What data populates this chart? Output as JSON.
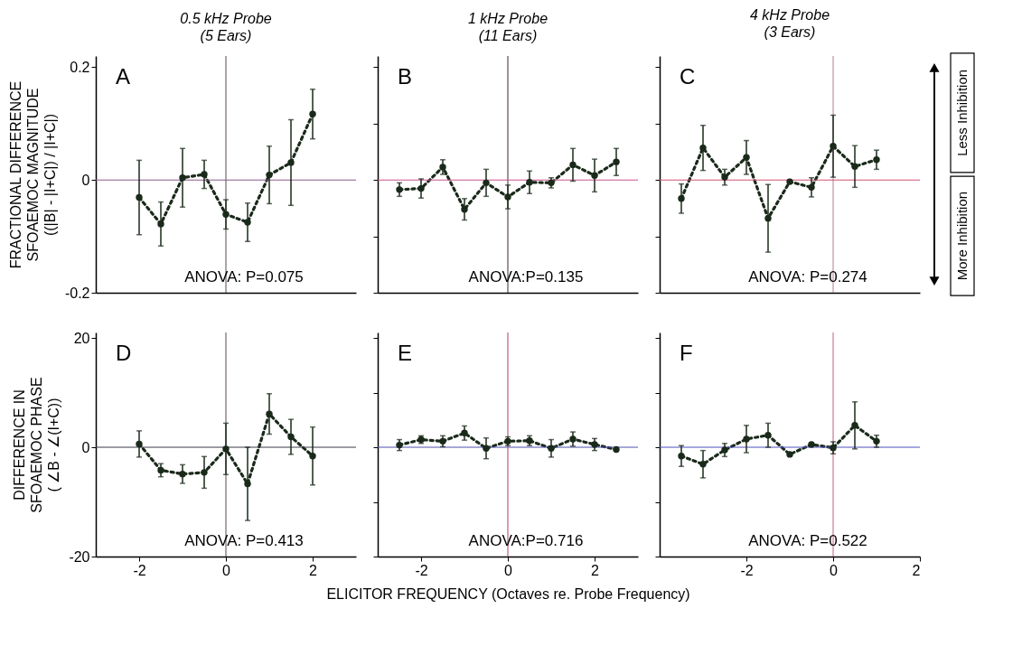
{
  "chart_data": [
    {
      "type": "line",
      "title": "0.5 kHz Probe",
      "subtitle": "(5 Ears)",
      "ylabel": "FRACTIONAL DIFFERENCE\nSFOAEMOC MAGNITUDE\n((|B| - |I+C|) / |I+C|)",
      "xlim": [
        -3,
        3
      ],
      "ylim": [
        -0.2,
        0.22
      ],
      "yticks": [
        -0.2,
        0,
        0.2
      ],
      "tick_labels": "y",
      "marker": "circle",
      "line_style": "dotted",
      "annotations": [
        "A",
        "ANOVA: P=0.075"
      ],
      "ref_lines": [
        {
          "axis": "y",
          "value": 0,
          "color": "#8a5a8a"
        },
        {
          "axis": "x",
          "value": 0,
          "color": "#5a4a4a"
        }
      ],
      "series": [
        {
          "color": "#1a2a1a",
          "x": [
            -2,
            -1.5,
            -1,
            -0.5,
            0,
            0.5,
            1,
            1.5,
            2
          ],
          "values": [
            -0.031,
            -0.078,
            0.004,
            0.01,
            -0.061,
            -0.075,
            0.009,
            0.031,
            0.117
          ],
          "errors": [
            0.066,
            0.039,
            0.052,
            0.025,
            0.026,
            0.034,
            0.051,
            0.076,
            0.044
          ]
        }
      ]
    },
    {
      "type": "line",
      "title": "1 kHz Probe",
      "subtitle": "(11 Ears)",
      "xlim": [
        -3,
        3
      ],
      "ylim": [
        -0.2,
        0.22
      ],
      "yticks": [
        {
          "value": -0.2,
          "label": null
        },
        {
          "value": -0.1,
          "label": null
        },
        {
          "value": 0,
          "label": null
        },
        {
          "value": 0.1,
          "label": null
        },
        {
          "value": 0.2,
          "label": null
        }
      ],
      "tick_labels": false,
      "marker": "circle",
      "line_style": "dotted",
      "annotations": [
        "B",
        "ANOVA:P=0.135"
      ],
      "ref_lines": [
        {
          "axis": "y",
          "value": 0,
          "color": "#c8508a"
        },
        {
          "axis": "x",
          "value": 0,
          "color": "#3a2a2a"
        }
      ],
      "series": [
        {
          "color": "#1a2a1a",
          "x": [
            -2.5,
            -2,
            -1.5,
            -1,
            -0.5,
            0,
            0.5,
            1,
            1.5,
            2,
            2.5
          ],
          "values": [
            -0.017,
            -0.015,
            0.023,
            -0.052,
            -0.005,
            -0.03,
            -0.004,
            -0.005,
            0.027,
            0.008,
            0.032
          ],
          "errors": [
            0.012,
            0.017,
            0.013,
            0.019,
            0.024,
            0.021,
            0.02,
            0.009,
            0.029,
            0.029,
            0.024
          ]
        }
      ]
    },
    {
      "type": "line",
      "title": "4 kHz Probe",
      "subtitle": "(3 Ears)",
      "xlim": [
        -4,
        2
      ],
      "ylim": [
        -0.2,
        0.22
      ],
      "yticks": [
        {
          "value": -0.2,
          "label": null
        },
        {
          "value": -0.1,
          "label": null
        },
        {
          "value": 0,
          "label": null
        },
        {
          "value": 0.1,
          "label": null
        },
        {
          "value": 0.2,
          "label": null
        }
      ],
      "tick_labels": false,
      "marker": "circle",
      "line_style": "dotted",
      "annotations": [
        "C",
        "ANOVA: P=0.274",
        "Less Inhibition",
        "More Inhibition"
      ],
      "ref_lines": [
        {
          "axis": "y",
          "value": 0,
          "color": "#d05070"
        },
        {
          "axis": "x",
          "value": 0,
          "color": "#b08090"
        }
      ],
      "series": [
        {
          "color": "#1a2a1a",
          "x": [
            -3.5,
            -3,
            -2.5,
            -2,
            -1.5,
            -1,
            -0.5,
            0,
            0.5,
            1
          ],
          "values": [
            -0.033,
            0.057,
            0.005,
            0.04,
            -0.068,
            -0.003,
            -0.013,
            0.06,
            0.024,
            0.036
          ],
          "errors": [
            0.026,
            0.04,
            0.014,
            0.03,
            0.06,
            null,
            0.017,
            0.055,
            0.037,
            0.017
          ]
        }
      ]
    },
    {
      "type": "line",
      "ylabel": "DIFFERENCE IN\nSFOAEMOC PHASE\n( ∠B - ∠(I+C))",
      "xlim": [
        -3,
        3
      ],
      "ylim": [
        -20,
        21
      ],
      "xticks": [
        -2,
        0,
        2
      ],
      "yticks": [
        -20,
        0,
        20
      ],
      "marker": "circle",
      "line_style": "dotted",
      "annotations": [
        "D",
        "ANOVA: P=0.413"
      ],
      "ref_lines": [
        {
          "axis": "y",
          "value": 0,
          "color": "#3a3a4a"
        },
        {
          "axis": "x",
          "value": 0,
          "color": "#5a4a4a"
        }
      ],
      "series": [
        {
          "color": "#1a2a1a",
          "x": [
            -2,
            -1.5,
            -1,
            -0.5,
            0,
            0.5,
            1,
            1.5,
            2
          ],
          "values": [
            0.6,
            -4.2,
            -4.9,
            -4.6,
            -0.3,
            -6.7,
            6.1,
            1.9,
            -1.6
          ],
          "errors": [
            2.4,
            1.2,
            1.7,
            2.9,
            4.7,
            6.7,
            3.7,
            3.2,
            5.3
          ]
        }
      ]
    },
    {
      "type": "line",
      "xlabel": "ELICITOR FREQUENCY (Octaves re. Probe Frequency)",
      "xlim": [
        -3,
        3
      ],
      "ylim": [
        -20,
        21
      ],
      "xticks": [
        -2,
        0,
        2
      ],
      "yticks": [
        {
          "value": -20,
          "label": null
        },
        {
          "value": -10,
          "label": null
        },
        {
          "value": 0,
          "label": null
        },
        {
          "value": 10,
          "label": null
        },
        {
          "value": 20,
          "label": null
        }
      ],
      "tick_labels": "x",
      "marker": "circle",
      "line_style": "dotted",
      "annotations": [
        "E",
        "ANOVA:P=0.716"
      ],
      "ref_lines": [
        {
          "axis": "y",
          "value": 0,
          "color": "#5050b0"
        },
        {
          "axis": "x",
          "value": 0,
          "color": "#b04060"
        }
      ],
      "series": [
        {
          "color": "#1a2a1a",
          "x": [
            -2.5,
            -2,
            -1.5,
            -1,
            -0.5,
            0,
            0.5,
            1,
            1.5,
            2,
            2.5
          ],
          "values": [
            0.4,
            1.4,
            1.1,
            2.6,
            -0.2,
            1.1,
            1.2,
            -0.2,
            1.5,
            0.5,
            -0.4
          ],
          "errors": [
            1.0,
            0.7,
            1.0,
            1.3,
            1.9,
            0.8,
            0.9,
            1.6,
            1.3,
            1.1,
            null
          ]
        }
      ]
    },
    {
      "type": "line",
      "xlim": [
        -4,
        2
      ],
      "ylim": [
        -20,
        21
      ],
      "xticks": [
        -2,
        0,
        2
      ],
      "yticks": [
        {
          "value": -20,
          "label": null
        },
        {
          "value": -10,
          "label": null
        },
        {
          "value": 0,
          "label": null
        },
        {
          "value": 10,
          "label": null
        },
        {
          "value": 20,
          "label": null
        }
      ],
      "tick_labels": "x",
      "marker": "circle",
      "line_style": "dotted",
      "annotations": [
        "F",
        "ANOVA: P=0.522"
      ],
      "ref_lines": [
        {
          "axis": "y",
          "value": 0,
          "color": "#5050c0"
        },
        {
          "axis": "x",
          "value": 0,
          "color": "#c06080"
        }
      ],
      "series": [
        {
          "color": "#1a2a1a",
          "x": [
            -3.5,
            -3,
            -2.5,
            -2,
            -1.5,
            -1,
            -0.5,
            0,
            0.5,
            1
          ],
          "values": [
            -1.6,
            -3.1,
            -0.5,
            1.5,
            2.2,
            -1.3,
            0.5,
            -0.1,
            4.0,
            1.1
          ],
          "errors": [
            1.9,
            2.5,
            1.2,
            2.5,
            2.2,
            null,
            null,
            1.1,
            4.3,
            1.1
          ]
        }
      ]
    }
  ]
}
